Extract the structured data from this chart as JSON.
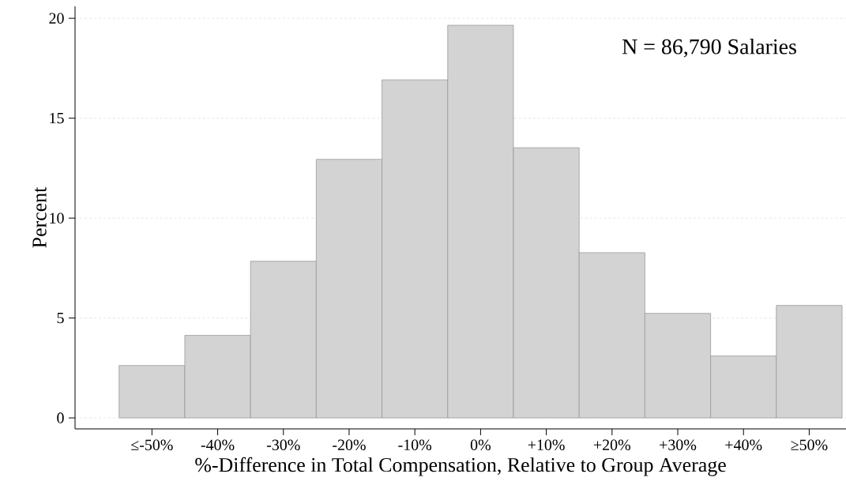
{
  "chart_data": {
    "type": "bar",
    "xlabel": "%-Difference in Total Compensation, Relative to Group Average",
    "ylabel": "Percent",
    "categories": [
      "≤-50%",
      "-40%",
      "-30%",
      "-20%",
      "-10%",
      "0%",
      "+10%",
      "+20%",
      "+30%",
      "+40%",
      "≥50%"
    ],
    "values": [
      2.62,
      4.13,
      7.84,
      12.94,
      16.92,
      19.65,
      13.52,
      8.27,
      5.23,
      3.1,
      5.63
    ],
    "color": "#d3d3d3",
    "ylim": [
      -0.55,
      20.6
    ],
    "yticks": [
      0,
      5,
      10,
      15,
      20
    ],
    "grid": "y",
    "annotations": [
      "N = 86,790 Salaries"
    ]
  }
}
